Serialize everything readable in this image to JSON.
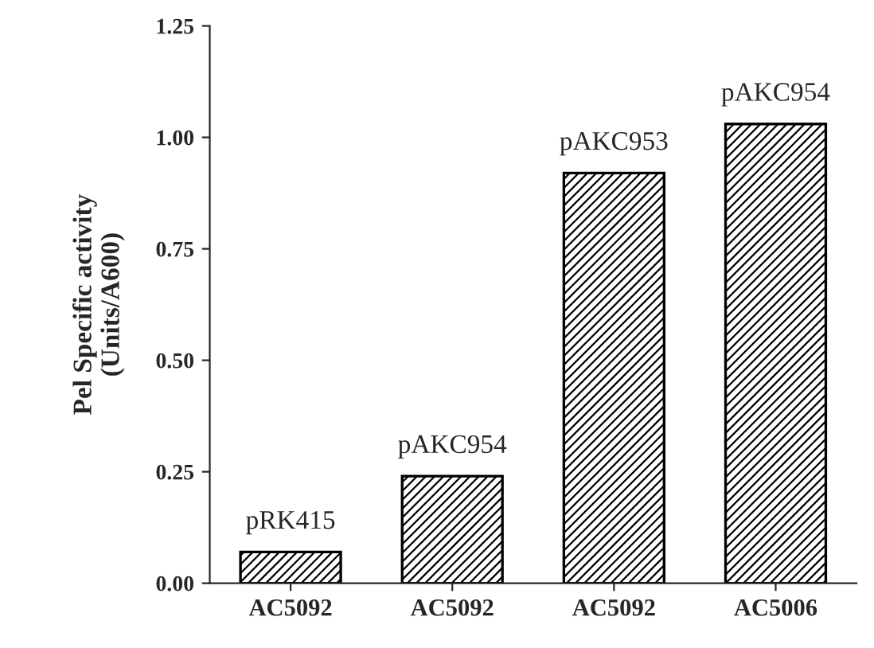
{
  "chart_data": {
    "type": "bar",
    "ylabel": "Pel Specific activity\n(Units/A600)",
    "categories": [
      "AC5092",
      "AC5092",
      "AC5092",
      "AC5006"
    ],
    "values": [
      0.07,
      0.24,
      0.92,
      1.03
    ],
    "color": "#000000",
    "annotations": [
      "pRK415",
      "pAKC954",
      "pAKC953",
      "pAKC954"
    ],
    "ylim": [
      0,
      1.25
    ],
    "yticks": [
      {
        "value": 0,
        "label": "0.00"
      },
      {
        "value": 0.25,
        "label": "0.25"
      },
      {
        "value": 0.5,
        "label": "0.50"
      },
      {
        "value": 0.75,
        "label": "0.75"
      },
      {
        "value": 1.0,
        "label": "1.00"
      },
      {
        "value": 1.25,
        "label": "1.25"
      }
    ],
    "grid": false
  }
}
